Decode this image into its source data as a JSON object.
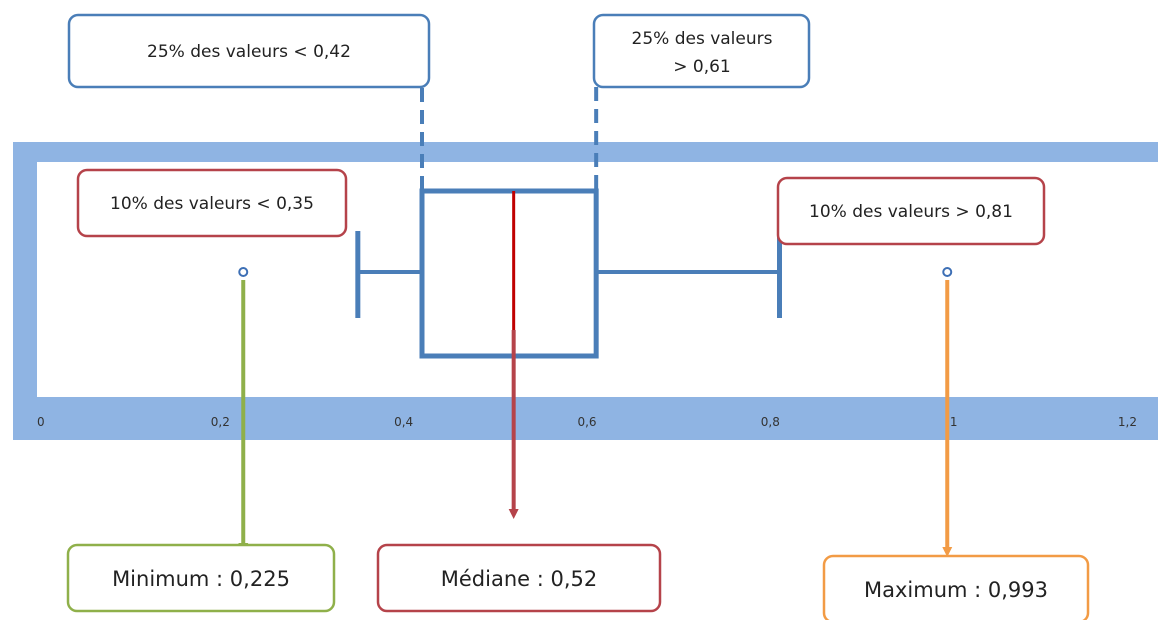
{
  "colors": {
    "frame": "#8fb4e3",
    "box": "#4a7eb8",
    "median": "#c00000",
    "callout_blue": "#4a7eb8",
    "callout_red": "#b5434a",
    "green": "#8fb04a",
    "orange": "#f29b45"
  },
  "chart_data": {
    "type": "box",
    "orientation": "horizontal",
    "xlim": [
      0,
      1.2
    ],
    "ticks": [
      {
        "value": 0,
        "label": "0"
      },
      {
        "value": 0.2,
        "label": "0,2"
      },
      {
        "value": 0.4,
        "label": "0,4"
      },
      {
        "value": 0.6,
        "label": "0,6"
      },
      {
        "value": 0.8,
        "label": "0,8"
      },
      {
        "value": 1.0,
        "label": "1"
      },
      {
        "value": 1.2,
        "label": "1,2"
      }
    ],
    "stats": {
      "minimum": 0.225,
      "p10": 0.35,
      "q1": 0.42,
      "median": 0.52,
      "q3": 0.61,
      "p90": 0.81,
      "maximum": 0.993
    }
  },
  "annotations": {
    "q1": {
      "text": "25% des valeurs < 0,42"
    },
    "q3": {
      "lines": [
        "25% des valeurs",
        "> 0,61"
      ]
    },
    "p10": {
      "text": "10% des valeurs < 0,35"
    },
    "p90": {
      "text": "10% des valeurs > 0,81"
    },
    "min": {
      "text": "Minimum : 0,225"
    },
    "median": {
      "text": "Médiane : 0,52"
    },
    "max": {
      "text": "Maximum : 0,993"
    }
  }
}
